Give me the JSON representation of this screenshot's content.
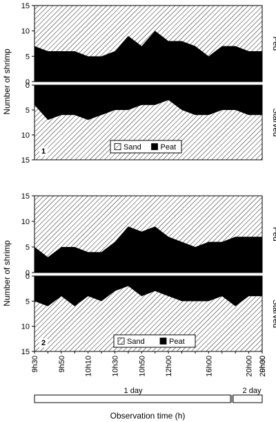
{
  "chart_data": {
    "type": "area",
    "xlabel": "Observation time (h)",
    "ylabel": "Number of shrimp",
    "ylim": [
      0,
      15
    ],
    "yticks": [
      0,
      5,
      10,
      15
    ],
    "x_tick_labels": [
      "9h30",
      "9h50",
      "10h10",
      "10h30",
      "10h50",
      "12h00",
      "16h00",
      "20h00",
      "9h30",
      "20h00"
    ],
    "x_tick_indices": [
      0,
      2,
      4,
      6,
      8,
      10,
      13,
      16,
      18,
      20
    ],
    "timeline": {
      "day1_label": "1 day",
      "day2_label": "2 day"
    },
    "legend": [
      "Sand",
      "Peat"
    ],
    "colors": {
      "sand": "#ffffff",
      "peat": "#000000",
      "hatch": "#000000"
    },
    "panels": [
      {
        "number": "1",
        "fed": {
          "label": "Fed",
          "peat": [
            7,
            6,
            6,
            6,
            5,
            5,
            6,
            9,
            7,
            10,
            8,
            8,
            7,
            5,
            7,
            7,
            6,
            6
          ]
        },
        "starved": {
          "label": "Starved",
          "peat": [
            4,
            7,
            6,
            6,
            7,
            6,
            5,
            5,
            4,
            4,
            3,
            5,
            6,
            6,
            5,
            5,
            6,
            6
          ]
        }
      },
      {
        "number": "2",
        "fed": {
          "label": "Fed",
          "peat": [
            5,
            3,
            5,
            5,
            4,
            4,
            6,
            9,
            8,
            9,
            7,
            6,
            5,
            6,
            6,
            7,
            7,
            7
          ]
        },
        "starved": {
          "label": "Starved",
          "peat": [
            5,
            6,
            4,
            6,
            4,
            5,
            3,
            2,
            4,
            3,
            4,
            5,
            5,
            5,
            4,
            6,
            4,
            4
          ]
        }
      }
    ]
  }
}
